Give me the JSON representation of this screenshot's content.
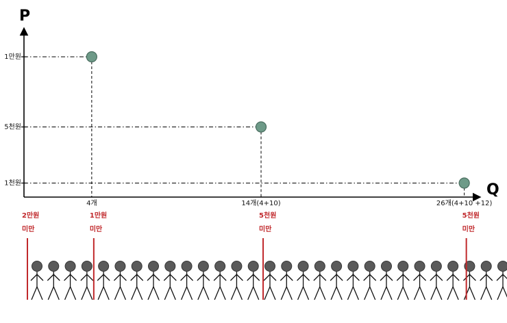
{
  "chart_data": {
    "type": "scatter",
    "xlabel": "Q",
    "ylabel": "P",
    "points": [
      {
        "x": 4,
        "y": 10000,
        "x_label": "4개",
        "y_label": "1만원"
      },
      {
        "x": 14,
        "y": 5000,
        "x_label": "14개(4+10)",
        "y_label": "5천원"
      },
      {
        "x": 26,
        "y": 1000,
        "x_label": "26개(4+10 +12)",
        "y_label": "1천원"
      }
    ],
    "xlim": [
      0,
      26.5
    ],
    "ylim": [
      0,
      12000
    ],
    "point_color": "#6e9a88",
    "thresholds": [
      {
        "x": 0,
        "label_line1": "2만원",
        "label_line2": "미만"
      },
      {
        "x": 4,
        "label_line1": "1만원",
        "label_line2": "미만"
      },
      {
        "x": 14,
        "label_line1": "5천원",
        "label_line2": "미만"
      },
      {
        "x": 26,
        "label_line1": "5천원",
        "label_line2": "미만"
      }
    ],
    "threshold_color": "#c0282b",
    "people_count": 29,
    "grid": false,
    "legend": "none"
  }
}
